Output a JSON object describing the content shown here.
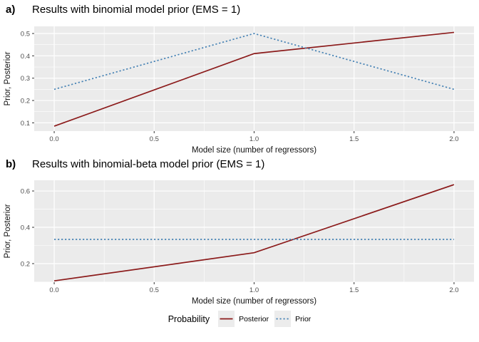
{
  "chart_data": [
    {
      "type": "line",
      "tag": "a)",
      "title": "Results with binomial model prior (EMS = 1)",
      "xlabel": "Model size (number of regressors)",
      "ylabel": "Prior, Posterior",
      "x": [
        0,
        1,
        2
      ],
      "series": [
        {
          "name": "Posterior",
          "color": "#8B1A1A",
          "style": "solid",
          "values": [
            0.085,
            0.41,
            0.505
          ]
        },
        {
          "name": "Prior",
          "color": "#4682B4",
          "style": "dotted",
          "values": [
            0.25,
            0.5,
            0.25
          ]
        }
      ],
      "xlim": [
        -0.1,
        2.1
      ],
      "ylim": [
        0.063,
        0.532
      ],
      "x_ticks": [
        0.0,
        0.5,
        1.0,
        1.5,
        2.0
      ],
      "y_ticks": [
        0.1,
        0.2,
        0.3,
        0.4,
        0.5
      ],
      "x_tick_labels": [
        "0.0",
        "0.5",
        "1.0",
        "1.5",
        "2.0"
      ],
      "y_tick_labels": [
        "0.1",
        "0.2",
        "0.3",
        "0.4",
        "0.5"
      ],
      "grid": true,
      "legend_position": "bottom",
      "panel_bg": "#EBEBEB",
      "grid_color": "#FFFFFF"
    },
    {
      "type": "line",
      "tag": "b)",
      "title": "Results with binomial-beta model prior (EMS = 1)",
      "xlabel": "Model size (number of regressors)",
      "ylabel": "Prior, Posterior",
      "x": [
        0,
        1,
        2
      ],
      "series": [
        {
          "name": "Posterior",
          "color": "#8B1A1A",
          "style": "solid",
          "values": [
            0.105,
            0.26,
            0.635
          ]
        },
        {
          "name": "Prior",
          "color": "#4682B4",
          "style": "dotted",
          "values": [
            0.3333,
            0.3333,
            0.3333
          ]
        }
      ],
      "xlim": [
        -0.1,
        2.1
      ],
      "ylim": [
        0.098,
        0.659
      ],
      "x_ticks": [
        0.0,
        0.5,
        1.0,
        1.5,
        2.0
      ],
      "y_ticks": [
        0.2,
        0.4,
        0.6
      ],
      "x_tick_labels": [
        "0.0",
        "0.5",
        "1.0",
        "1.5",
        "2.0"
      ],
      "y_tick_labels": [
        "0.2",
        "0.4",
        "0.6"
      ],
      "grid": true,
      "legend_position": "bottom",
      "panel_bg": "#EBEBEB",
      "grid_color": "#FFFFFF"
    }
  ],
  "legend": {
    "title": "Probability",
    "items": [
      {
        "label": "Posterior",
        "color": "#8B1A1A",
        "style": "solid"
      },
      {
        "label": "Prior",
        "color": "#4682B4",
        "style": "dotted"
      }
    ],
    "key_bg": "#ECECEC"
  }
}
